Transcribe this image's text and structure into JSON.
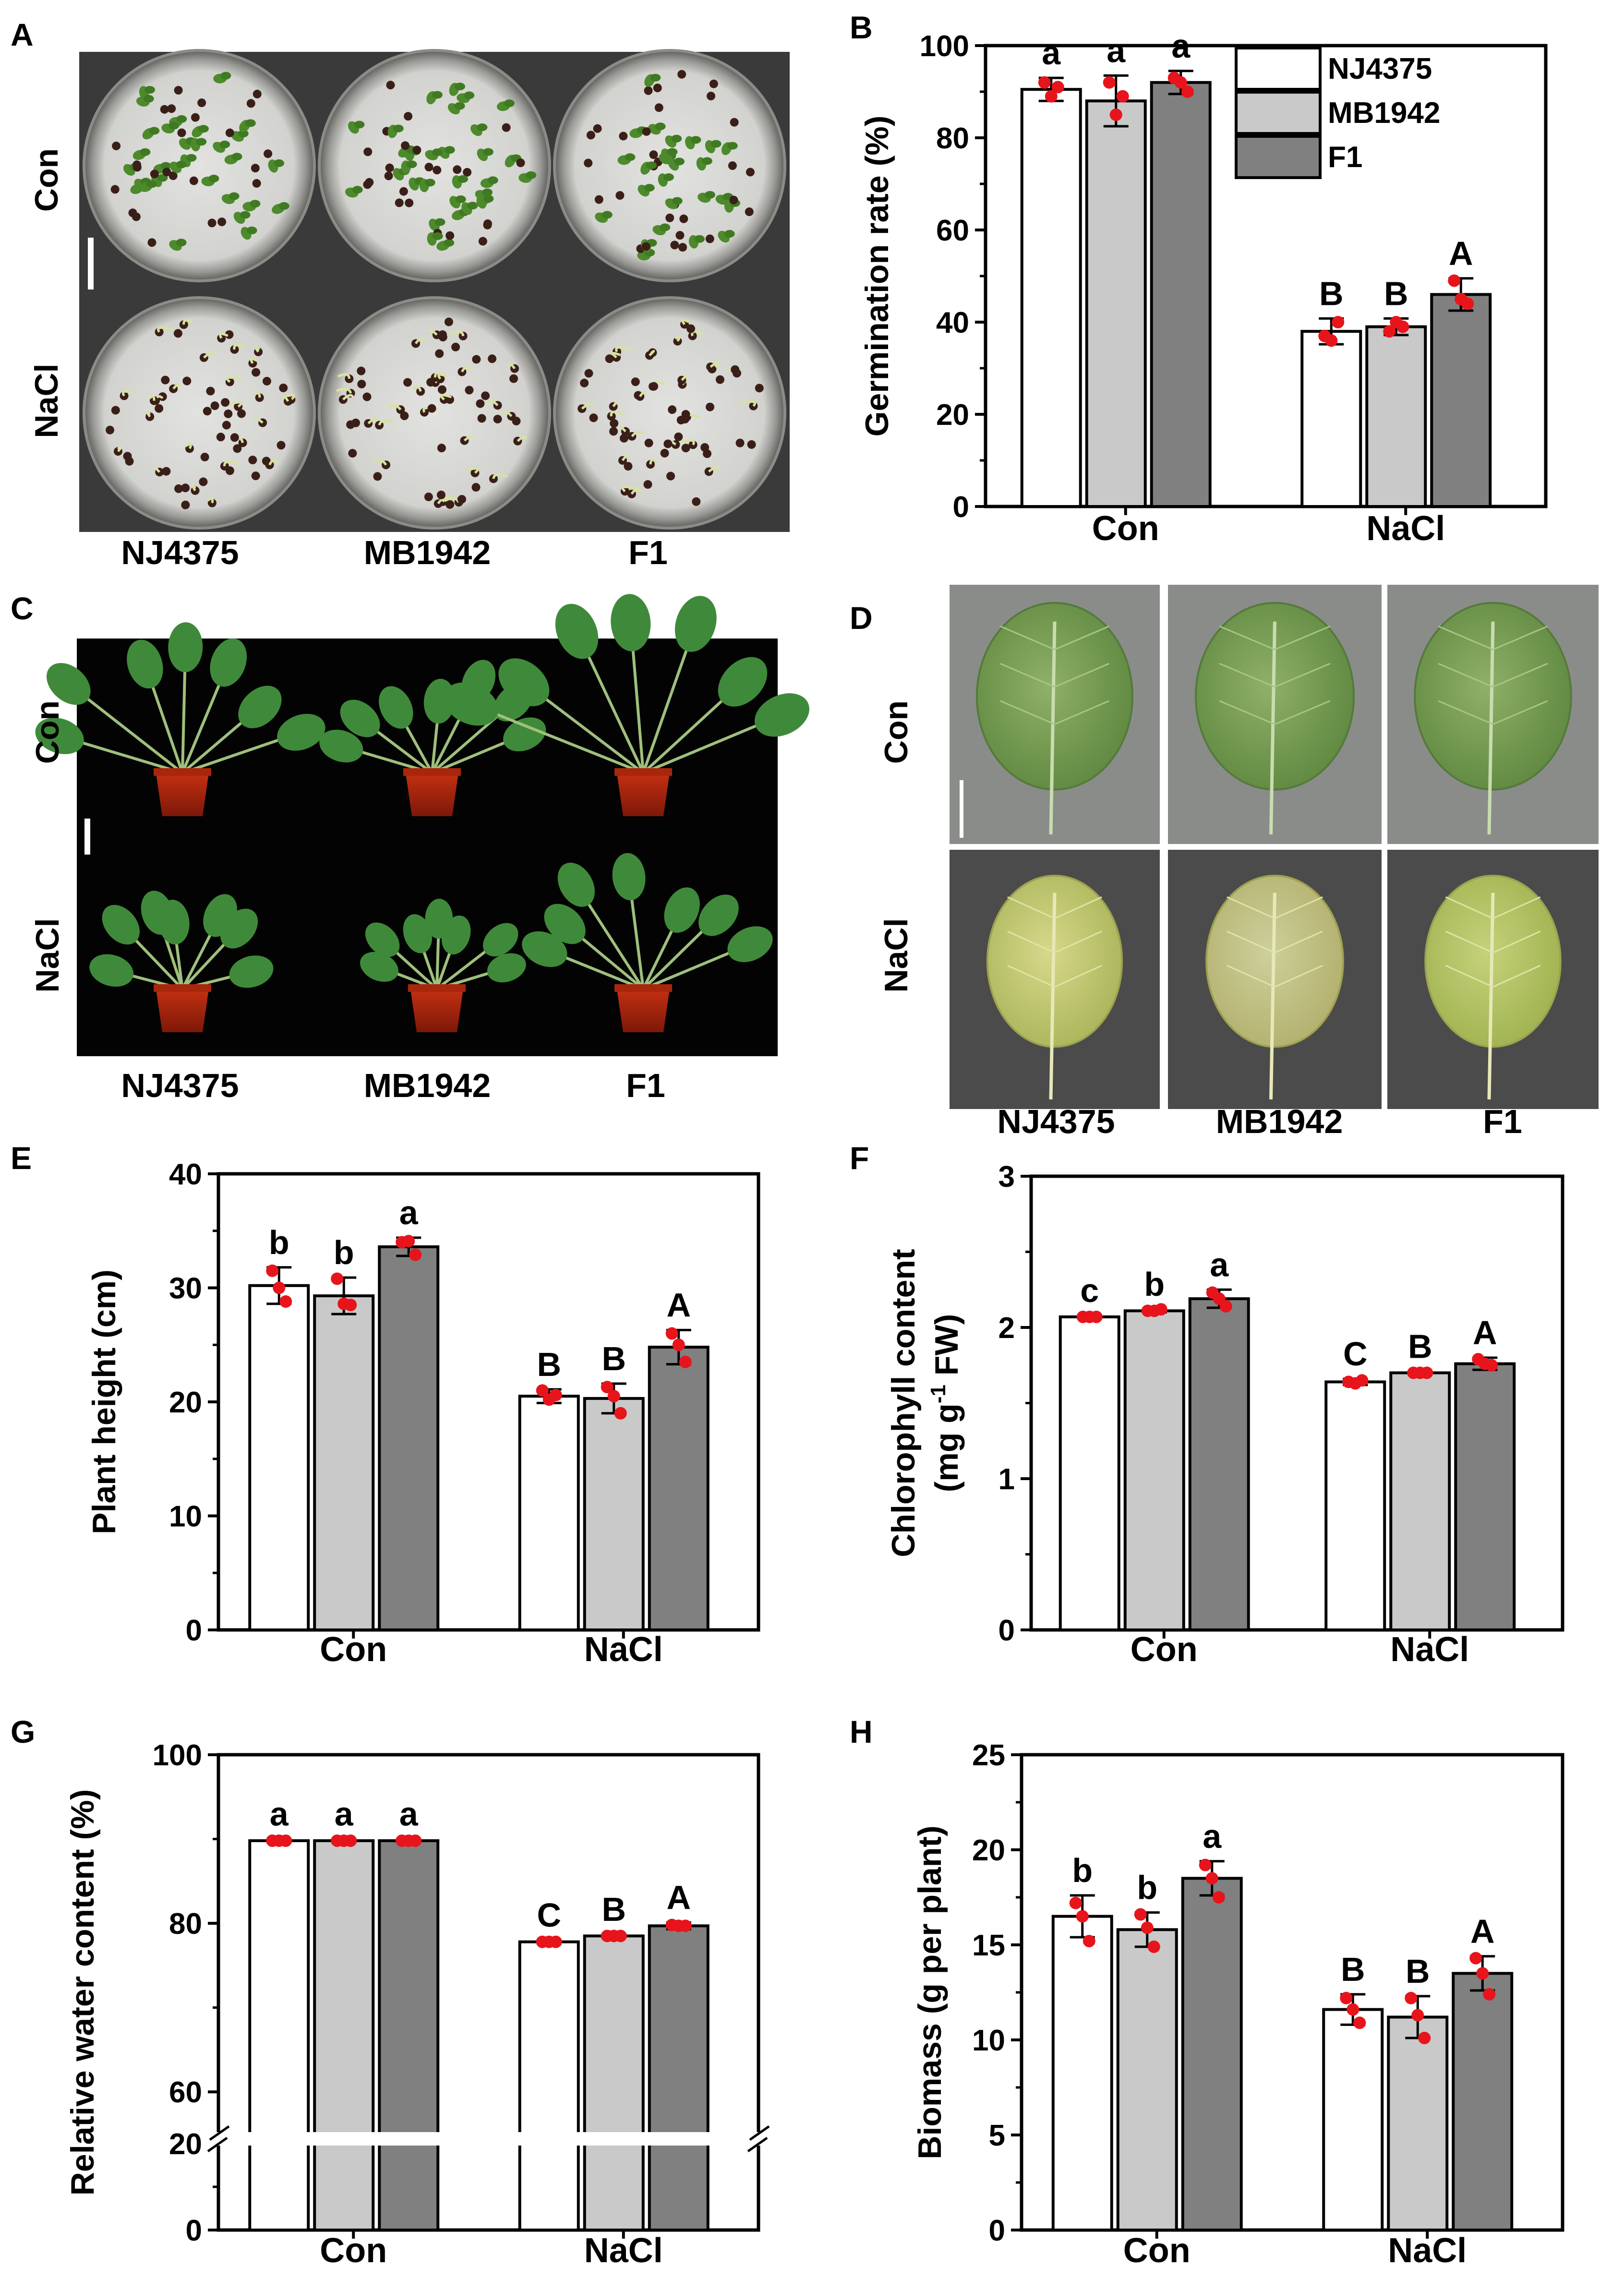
{
  "panel_letters": [
    "A",
    "B",
    "C",
    "D",
    "E",
    "F",
    "G",
    "H"
  ],
  "photo_panels": {
    "A": {
      "row_labels": [
        "Con",
        "NaCl"
      ],
      "col_labels": [
        "NJ4375",
        "MB1942",
        "F1"
      ]
    },
    "C": {
      "row_labels": [
        "Con",
        "NaCl"
      ],
      "col_labels": [
        "NJ4375",
        "MB1942",
        "F1"
      ]
    },
    "D": {
      "row_labels": [
        "Con",
        "NaCl"
      ],
      "col_labels": [
        "NJ4375",
        "MB1942",
        "F1"
      ]
    }
  },
  "colors": {
    "NJ4375": "#ffffff",
    "MB1942": "#c9c9c9",
    "F1": "#808080",
    "dots": "#e8141b"
  },
  "legend": [
    "NJ4375",
    "MB1942",
    "F1"
  ],
  "chart_data": [
    {
      "panel": "B",
      "type": "bar",
      "ylabel": "Germination rate (%)",
      "ylim": [
        0,
        100
      ],
      "yticks": [
        0,
        20,
        40,
        60,
        80,
        100
      ],
      "categories": [
        "Con",
        "NaCl"
      ],
      "series": [
        {
          "name": "NJ4375",
          "values": [
            90.5,
            38
          ],
          "err": [
            2.5,
            2.8
          ],
          "letters": [
            "a",
            "B"
          ],
          "dots": [
            [
              92,
              89,
              91
            ],
            [
              37,
              36,
              40
            ]
          ]
        },
        {
          "name": "MB1942",
          "values": [
            88,
            39
          ],
          "err": [
            5.5,
            1.8
          ],
          "letters": [
            "a",
            "B"
          ],
          "dots": [
            [
              92,
              85,
              89
            ],
            [
              38,
              40,
              39
            ]
          ]
        },
        {
          "name": "F1",
          "values": [
            92,
            46
          ],
          "err": [
            2.5,
            3.5
          ],
          "letters": [
            "a",
            "A"
          ],
          "dots": [
            [
              93,
              92,
              90
            ],
            [
              49,
              45,
              44
            ]
          ]
        }
      ],
      "legend_position": "top-right"
    },
    {
      "panel": "E",
      "type": "bar",
      "ylabel": "Plant height (cm)",
      "ylim": [
        0,
        40
      ],
      "yticks": [
        0,
        10,
        20,
        30,
        40
      ],
      "categories": [
        "Con",
        "NaCl"
      ],
      "series": [
        {
          "name": "NJ4375",
          "values": [
            30.2,
            20.5
          ],
          "err": [
            1.6,
            0.6
          ],
          "letters": [
            "b",
            "B"
          ],
          "dots": [
            [
              31.5,
              30,
              28.8
            ],
            [
              21,
              20.2,
              20.6
            ]
          ]
        },
        {
          "name": "MB1942",
          "values": [
            29.3,
            20.3
          ],
          "err": [
            1.6,
            1.3
          ],
          "letters": [
            "b",
            "B"
          ],
          "dots": [
            [
              30.8,
              28.6,
              28.5
            ],
            [
              21.3,
              20.5,
              19
            ]
          ]
        },
        {
          "name": "F1",
          "values": [
            33.6,
            24.8
          ],
          "err": [
            0.8,
            1.5
          ],
          "letters": [
            "a",
            "A"
          ],
          "dots": [
            [
              34,
              34.1,
              32.9
            ],
            [
              26,
              25,
              23.5
            ]
          ]
        }
      ]
    },
    {
      "panel": "F",
      "type": "bar",
      "ylabel": "Chlorophyll content (mg g-1 FW)",
      "ylim": [
        0,
        3
      ],
      "yticks": [
        0,
        1,
        2,
        3
      ],
      "categories": [
        "Con",
        "NaCl"
      ],
      "series": [
        {
          "name": "NJ4375",
          "values": [
            2.07,
            1.64
          ],
          "err": [
            0.01,
            0.02
          ],
          "letters": [
            "c",
            "C"
          ],
          "dots": [
            [
              2.07,
              2.07,
              2.07
            ],
            [
              1.64,
              1.63,
              1.65
            ]
          ]
        },
        {
          "name": "MB1942",
          "values": [
            2.11,
            1.7
          ],
          "err": [
            0.01,
            0.01
          ],
          "letters": [
            "b",
            "B"
          ],
          "dots": [
            [
              2.11,
              2.11,
              2.12
            ],
            [
              1.7,
              1.7,
              1.7
            ]
          ]
        },
        {
          "name": "F1",
          "values": [
            2.19,
            1.76
          ],
          "err": [
            0.06,
            0.04
          ],
          "letters": [
            "a",
            "A"
          ],
          "dots": [
            [
              2.23,
              2.19,
              2.14
            ],
            [
              1.79,
              1.76,
              1.75
            ]
          ]
        }
      ]
    },
    {
      "panel": "G",
      "type": "bar",
      "ylabel": "Relative water content (%)",
      "ylim": [
        0,
        100
      ],
      "yticks": [
        0,
        20,
        60,
        80,
        100
      ],
      "axis_break": [
        20,
        55
      ],
      "categories": [
        "Con",
        "NaCl"
      ],
      "series": [
        {
          "name": "NJ4375",
          "values": [
            89.8,
            77.8
          ],
          "err": [
            0.2,
            0.2
          ],
          "letters": [
            "a",
            "C"
          ],
          "dots": [
            [
              89.8,
              89.8,
              89.8
            ],
            [
              77.8,
              77.8,
              77.8
            ]
          ]
        },
        {
          "name": "MB1942",
          "values": [
            89.8,
            78.5
          ],
          "err": [
            0.2,
            0.2
          ],
          "letters": [
            "a",
            "B"
          ],
          "dots": [
            [
              89.8,
              89.8,
              89.8
            ],
            [
              78.5,
              78.5,
              78.5
            ]
          ]
        },
        {
          "name": "F1",
          "values": [
            89.8,
            79.7
          ],
          "err": [
            0.2,
            0.4
          ],
          "letters": [
            "a",
            "A"
          ],
          "dots": [
            [
              89.8,
              89.8,
              89.8
            ],
            [
              79.8,
              79.7,
              79.7
            ]
          ]
        }
      ]
    },
    {
      "panel": "H",
      "type": "bar",
      "ylabel": "Biomass (g per plant)",
      "ylim": [
        0,
        25
      ],
      "yticks": [
        0,
        5,
        10,
        15,
        20,
        25
      ],
      "categories": [
        "Con",
        "NaCl"
      ],
      "series": [
        {
          "name": "NJ4375",
          "values": [
            16.5,
            11.6
          ],
          "err": [
            1.1,
            0.8
          ],
          "letters": [
            "b",
            "B"
          ],
          "dots": [
            [
              17.2,
              16.5,
              15.2
            ],
            [
              12.2,
              11.6,
              10.9
            ]
          ]
        },
        {
          "name": "MB1942",
          "values": [
            15.8,
            11.2
          ],
          "err": [
            0.9,
            1.1
          ],
          "letters": [
            "b",
            "B"
          ],
          "dots": [
            [
              16.6,
              15.9,
              14.9
            ],
            [
              12.2,
              11.3,
              10.1
            ]
          ]
        },
        {
          "name": "F1",
          "values": [
            18.5,
            13.5
          ],
          "err": [
            0.9,
            0.9
          ],
          "letters": [
            "a",
            "A"
          ],
          "dots": [
            [
              19.2,
              18.5,
              17.5
            ],
            [
              14.3,
              13.5,
              12.4
            ]
          ]
        }
      ]
    }
  ]
}
